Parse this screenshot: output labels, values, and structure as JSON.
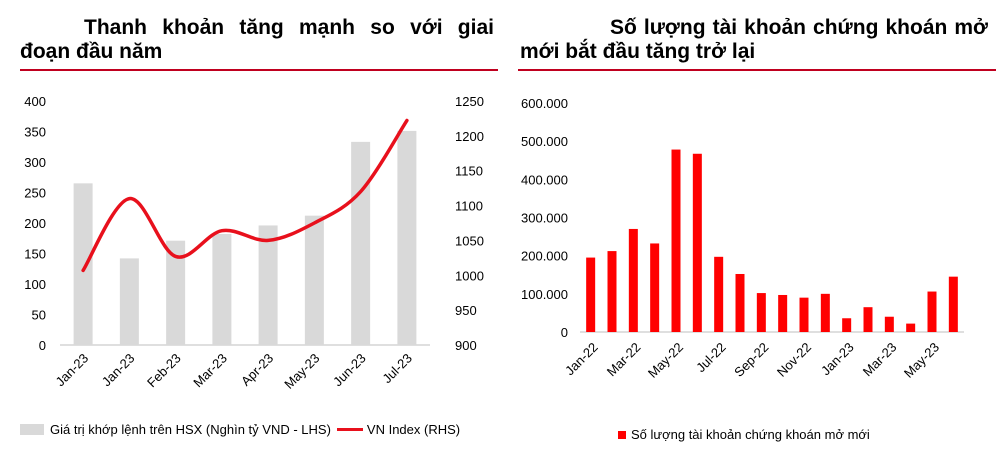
{
  "left_panel": {
    "title_line1": "Thanh khoản tăng mạnh so với giai",
    "title_line2": "đoạn đầu năm"
  },
  "right_panel": {
    "title_line1": "Số lượng tài khoản chứng khoán mở",
    "title_line2": "mới bắt đầu tăng trở lại"
  },
  "colors": {
    "rule": "#c0001f",
    "bar_gray": "#d9d9d9",
    "bar_red": "#ff0000",
    "line_red": "#e8101c"
  },
  "chart_data": [
    {
      "type": "bar",
      "title": "",
      "categories": [
        "Jan-23",
        "Jan-23",
        "Feb-23",
        "Mar-23",
        "Apr-23",
        "May-23",
        "Jun-23",
        "Jul-23"
      ],
      "ylim_left": [
        0,
        400
      ],
      "yticks_left": [
        "0",
        "50",
        "100",
        "150",
        "200",
        "250",
        "300",
        "350",
        "400"
      ],
      "ylim_right": [
        900,
        1250
      ],
      "yticks_right": [
        "900",
        "950",
        "1000",
        "1050",
        "1100",
        "1150",
        "1200",
        "1250"
      ],
      "series": [
        {
          "name": "Giá trị khớp lệnh trên HSX (Nghìn tỷ VND - LHS)",
          "kind": "bar",
          "axis": "left",
          "values": [
            265,
            142,
            171,
            182,
            196,
            212,
            333,
            351
          ]
        },
        {
          "name": "VN Index (RHS)",
          "kind": "line",
          "axis": "right",
          "values": [
            1007,
            1110,
            1027,
            1064,
            1050,
            1075,
            1120,
            1222
          ]
        }
      ]
    },
    {
      "type": "bar",
      "title": "",
      "categories": [
        "Jan-22",
        "Feb-22",
        "Mar-22",
        "Apr-22",
        "May-22",
        "Jun-22",
        "Jul-22",
        "Aug-22",
        "Sep-22",
        "Oct-22",
        "Nov-22",
        "Dec-22",
        "Jan-23",
        "Feb-23",
        "Mar-23",
        "Apr-23",
        "May-23",
        "Jun-23"
      ],
      "tick_labels": [
        "Jan-22",
        "Mar-22",
        "May-22",
        "Jul-22",
        "Sep-22",
        "Nov-22",
        "Jan-23",
        "Mar-23",
        "May-23"
      ],
      "ylim": [
        0,
        600000
      ],
      "yticks": [
        "0",
        "100.000",
        "200.000",
        "300.000",
        "400.000",
        "500.000",
        "600.000"
      ],
      "series": [
        {
          "name": "Số lượng tài khoản chứng khoán mở mới",
          "values": [
            195000,
            212000,
            270000,
            232000,
            478000,
            467000,
            197000,
            152000,
            102000,
            97000,
            90000,
            100000,
            36000,
            65000,
            40000,
            22000,
            106000,
            145000
          ]
        }
      ]
    }
  ]
}
